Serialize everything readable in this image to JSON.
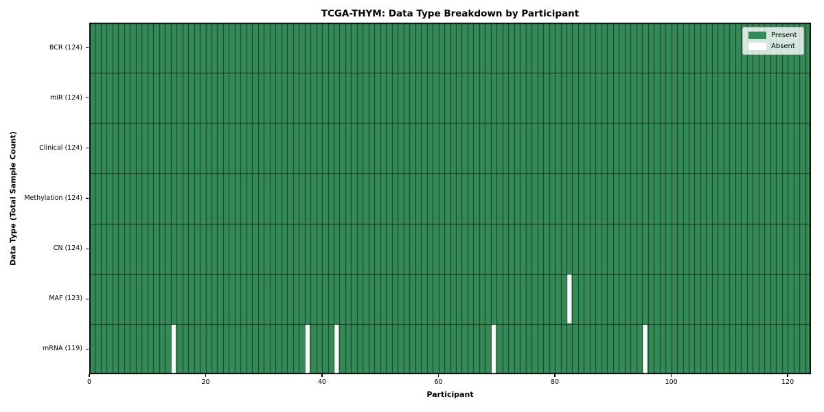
{
  "chart_data": {
    "type": "heatmap",
    "title": "TCGA-THYM: Data Type Breakdown by Participant",
    "xlabel": "Participant",
    "ylabel": "Data Type (Total Sample Count)",
    "n_participants": 124,
    "x_range": [
      0,
      124
    ],
    "x_ticks": [
      0,
      20,
      40,
      60,
      80,
      100,
      120
    ],
    "rows": [
      {
        "label": "BCR (124)",
        "data_type": "BCR",
        "total_sample_count": 124,
        "absent_participants": []
      },
      {
        "label": "miR (124)",
        "data_type": "miR",
        "total_sample_count": 124,
        "absent_participants": []
      },
      {
        "label": "Clinical (124)",
        "data_type": "Clinical",
        "total_sample_count": 124,
        "absent_participants": []
      },
      {
        "label": "Methylation (124)",
        "data_type": "Methylation",
        "total_sample_count": 124,
        "absent_participants": []
      },
      {
        "label": "CN (124)",
        "data_type": "CN",
        "total_sample_count": 124,
        "absent_participants": []
      },
      {
        "label": "MAF (123)",
        "data_type": "MAF",
        "total_sample_count": 123,
        "absent_participants": [
          82
        ]
      },
      {
        "label": "mRNA (119)",
        "data_type": "mRNA",
        "total_sample_count": 119,
        "absent_participants": [
          14,
          37,
          42,
          69,
          95
        ]
      }
    ],
    "legend": [
      {
        "label": "Present",
        "color": "#348a57"
      },
      {
        "label": "Absent",
        "color": "#ffffff"
      }
    ],
    "legend_position": "upper-right",
    "colors": {
      "present": "#348a57",
      "absent": "#ffffff",
      "cell_border": "rgba(0,0,0,0.6)",
      "plot_border": "#000000",
      "background": "#ffffff"
    }
  }
}
